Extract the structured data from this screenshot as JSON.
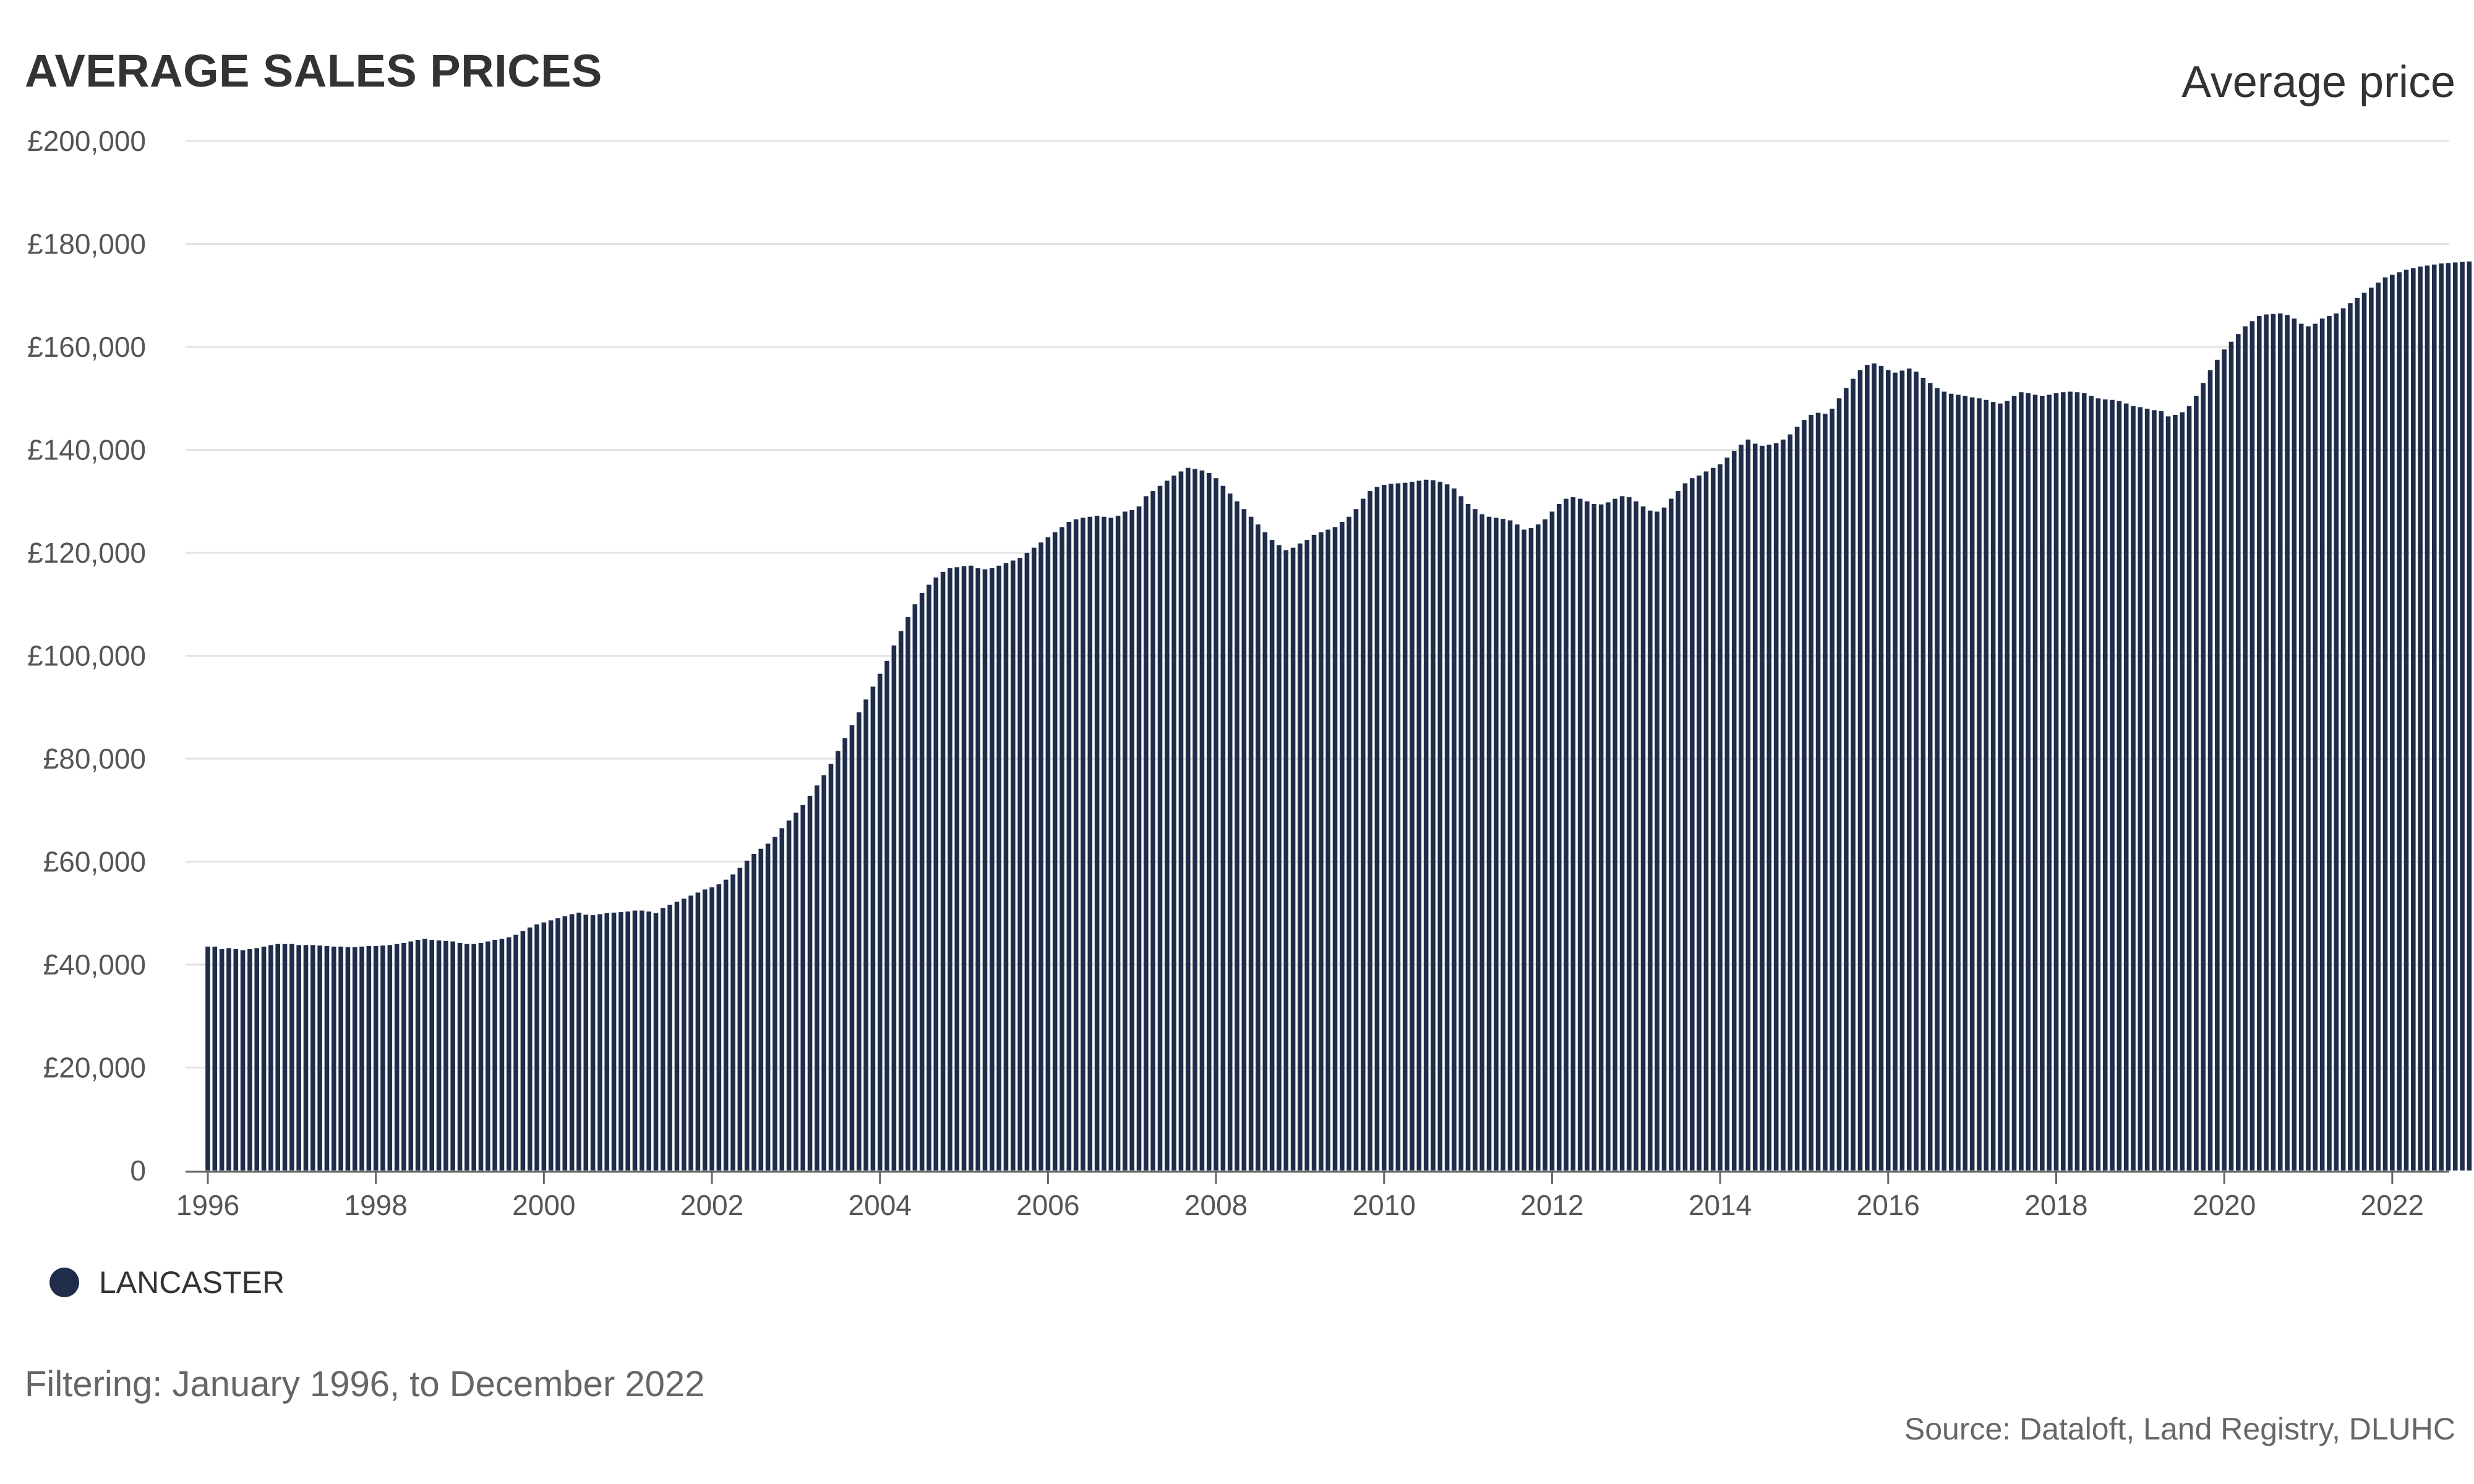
{
  "title": "AVERAGE SALES PRICES",
  "measure_label": "Average price",
  "legend": {
    "label": "LANCASTER",
    "color": "#1f2d4a"
  },
  "filter_text": "Filtering: January 1996, to December 2022",
  "source_text": "Source: Dataloft, Land Registry, DLUHC",
  "chart_data": {
    "type": "bar",
    "title": "AVERAGE SALES PRICES",
    "ylabel": "Average price",
    "ylim": [
      0,
      200000
    ],
    "yticks": [
      0,
      20000,
      40000,
      60000,
      80000,
      100000,
      120000,
      140000,
      160000,
      180000,
      200000
    ],
    "ytick_labels": [
      "0",
      "£20,000",
      "£40,000",
      "£60,000",
      "£80,000",
      "£100,000",
      "£120,000",
      "£140,000",
      "£160,000",
      "£180,000",
      "£200,000"
    ],
    "xtick_labels": [
      "1996",
      "1998",
      "2000",
      "2002",
      "2004",
      "2006",
      "2008",
      "2010",
      "2012",
      "2014",
      "2016",
      "2018",
      "2020",
      "2022"
    ],
    "grid": true,
    "legend_position": "bottom-left",
    "bar_color": "#1f2d4a",
    "series": [
      {
        "name": "LANCASTER",
        "start": "1996-01",
        "end": "2022-12",
        "yearly_values": [
          [
            43500,
            43500,
            43000,
            43200,
            43000,
            42800,
            43000,
            43200,
            43500,
            43800,
            44000,
            44000
          ],
          [
            44000,
            43800,
            43800,
            43800,
            43700,
            43600,
            43500,
            43500,
            43400,
            43400,
            43500,
            43600
          ],
          [
            43600,
            43700,
            43800,
            44000,
            44200,
            44500,
            44800,
            45000,
            44800,
            44700,
            44600,
            44500
          ],
          [
            44200,
            44000,
            44000,
            44200,
            44500,
            44800,
            45000,
            45300,
            45800,
            46500,
            47200,
            47800
          ],
          [
            48200,
            48600,
            49000,
            49400,
            49800,
            50100,
            49700,
            49600,
            49800,
            50000,
            50100,
            50200
          ],
          [
            50300,
            50500,
            50500,
            50300,
            50000,
            51000,
            51600,
            52200,
            52800,
            53400,
            54000,
            54600
          ],
          [
            55000,
            55600,
            56500,
            57500,
            58800,
            60200,
            61500,
            62500,
            63500,
            64800,
            66500,
            68000
          ],
          [
            69500,
            71000,
            72800,
            74800,
            76800,
            79000,
            81500,
            84000,
            86500,
            89000,
            91500,
            94000
          ],
          [
            96500,
            99000,
            102000,
            104800,
            107500,
            110000,
            112200,
            113800,
            115200,
            116300,
            117000,
            117200
          ],
          [
            117400,
            117500,
            117000,
            116800,
            117000,
            117500,
            118000,
            118500,
            119000,
            120000,
            121000,
            122000
          ],
          [
            123000,
            124000,
            125000,
            126000,
            126500,
            126800,
            127000,
            127200,
            127000,
            126800,
            127200,
            128000
          ],
          [
            128300,
            129000,
            131000,
            132000,
            133000,
            134000,
            135000,
            135800,
            136500,
            136300,
            136000,
            135500
          ],
          [
            134500,
            133000,
            131500,
            130000,
            128500,
            127000,
            125500,
            124000,
            122500,
            121500,
            120500,
            121000
          ],
          [
            121800,
            122500,
            123500,
            124000,
            124500,
            125000,
            126000,
            127000,
            128500,
            130500,
            132000,
            132800
          ],
          [
            133200,
            133400,
            133500,
            133600,
            133800,
            134000,
            134200,
            134100,
            133800,
            133300,
            132500,
            131000
          ],
          [
            129500,
            128500,
            127500,
            127000,
            126800,
            126600,
            126300,
            125500,
            124500,
            124800,
            125500,
            126500
          ],
          [
            128000,
            129500,
            130500,
            130800,
            130500,
            130000,
            129500,
            129400,
            129800,
            130500,
            131000,
            130800
          ],
          [
            130000,
            129000,
            128200,
            128000,
            128800,
            130500,
            132000,
            133500,
            134500,
            135000,
            135800,
            136500
          ],
          [
            137200,
            138500,
            139800,
            141000,
            142000,
            141200,
            140800,
            141000,
            141300,
            142000,
            143000,
            144500
          ],
          [
            145800,
            146800,
            147200,
            147000,
            148000,
            150000,
            152000,
            153800,
            155500,
            156500,
            156800,
            156300
          ],
          [
            155500,
            155000,
            155400,
            155800,
            155200,
            154000,
            153000,
            152000,
            151300,
            150900,
            150700,
            150500
          ],
          [
            150200,
            150000,
            149700,
            149300,
            149000,
            149500,
            150500,
            151200,
            151000,
            150700,
            150500,
            150700
          ],
          [
            151000,
            151200,
            151300,
            151200,
            151000,
            150500,
            150000,
            149800,
            149700,
            149500,
            149000,
            148500
          ],
          [
            148300,
            148000,
            147700,
            147500,
            146500,
            146800,
            147300,
            148500,
            150500,
            153000,
            155500,
            157500
          ],
          [
            159500,
            161000,
            162500,
            164000,
            165000,
            166000,
            166300,
            166400,
            166500,
            166200,
            165500,
            164500
          ],
          [
            164000,
            164500,
            165500,
            166000,
            166500,
            167500,
            168500,
            169500,
            170500,
            171500,
            172500,
            173500
          ],
          [
            174000,
            174500,
            175000,
            175300,
            175600,
            175800,
            176000,
            176200,
            176300,
            176400,
            176500,
            176600
          ]
        ]
      }
    ]
  }
}
